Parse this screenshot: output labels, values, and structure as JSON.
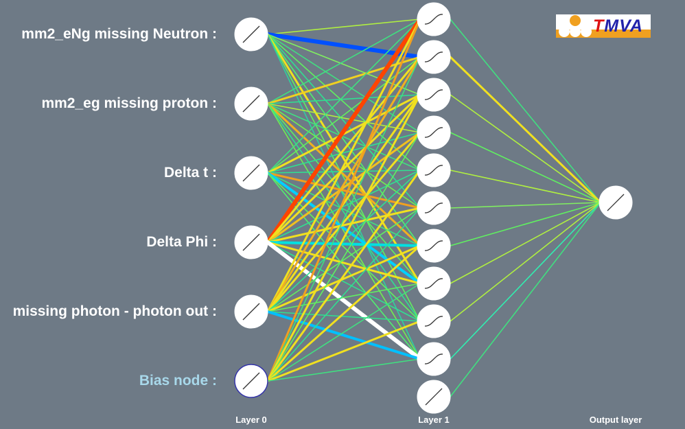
{
  "inputs": [
    {
      "label": "mm2_eNg missing Neutron :"
    },
    {
      "label": "mm2_eg missing proton :"
    },
    {
      "label": "Delta t :"
    },
    {
      "label": "Delta Phi :"
    },
    {
      "label": "missing photon - photon out :"
    },
    {
      "label": "Bias node :"
    }
  ],
  "layers": {
    "layer0": "Layer 0",
    "layer1": "Layer 1",
    "output": "Output layer"
  },
  "logo": {
    "text_t": "T",
    "text_rest": "MVA"
  },
  "network": {
    "input_nodes": 6,
    "hidden_nodes": 11,
    "output_nodes": 1,
    "input_hidden_weights": [
      [
        "#b0f040",
        "#0050ff",
        "#80f060",
        "#40e080",
        "#60f060",
        "#30e090",
        "#50f070",
        "#f0e020",
        "#60f060",
        "#30d0a0"
      ],
      [
        "#40e080",
        "#f0d020",
        "#30e090",
        "#b0f040",
        "#40e080",
        "#70f050",
        "#f0b020",
        "#60f060",
        "#30e090",
        "#70f050"
      ],
      [
        "#40e080",
        "#60f060",
        "#f0e020",
        "#30e090",
        "#30e090",
        "#f0a020",
        "#40e080",
        "#00d0ff",
        "#60f060",
        "#50f070"
      ],
      [
        "#ff4400",
        "#f0e020",
        "#f0e020",
        "#f0c020",
        "#30e090",
        "#f0e020",
        "#00e0e0",
        "#f0e020",
        "#30e090",
        "#ffffff"
      ],
      [
        "#f0e020",
        "#f0b020",
        "#f0e020",
        "#f0e020",
        "#30e090",
        "#60f060",
        "#f0e020",
        "#60f060",
        "#30e090",
        "#00c0ff"
      ],
      [
        "#f0a020",
        "#40e080",
        "#f0e020",
        "#60f060",
        "#f0e020",
        "#30e090",
        "#f0e020",
        "#40e080",
        "#f0e020",
        "#40e080"
      ]
    ],
    "hidden_output_weights": [
      "#40e080",
      "#f0e020",
      "#b0f040",
      "#60f060",
      "#b0f040",
      "#80f060",
      "#60f060",
      "#b0f040",
      "#b0f040",
      "#30f0b0",
      "#40e080"
    ]
  }
}
